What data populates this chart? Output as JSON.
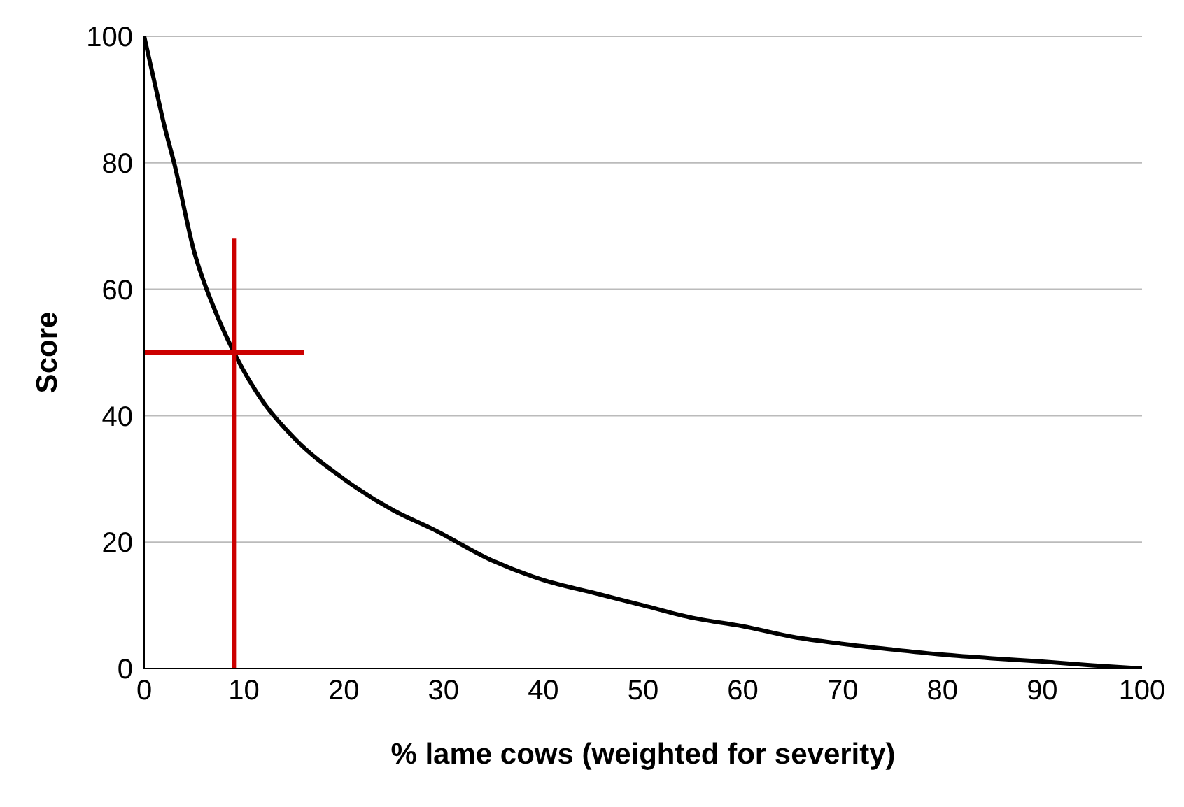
{
  "chart_data": {
    "type": "line",
    "xlabel": "% lame cows (weighted for severity)",
    "ylabel": "Score",
    "xlim": [
      0,
      100
    ],
    "ylim": [
      0,
      100
    ],
    "xticks": [
      0,
      10,
      20,
      30,
      40,
      50,
      60,
      70,
      80,
      90,
      100
    ],
    "yticks": [
      0,
      20,
      40,
      60,
      80,
      100
    ],
    "grid": "y",
    "marker": "none",
    "line_style": "solid",
    "series": [
      {
        "color": "#000000",
        "x": [
          0,
          1,
          2,
          3,
          5,
          7,
          9,
          12,
          15,
          20,
          25,
          29,
          35,
          40,
          45,
          50,
          55,
          60,
          65,
          70,
          75,
          80,
          85,
          90,
          95,
          100
        ],
        "values": [
          100,
          93,
          86,
          80,
          66,
          57,
          50,
          42,
          36.5,
          30,
          25,
          22,
          17,
          14,
          12,
          10,
          8,
          6.7,
          5,
          3.9,
          3,
          2.2,
          1.6,
          1.1,
          0.5,
          0
        ]
      },
      {
        "color": "#cc0000",
        "x": [
          9,
          9
        ],
        "values": [
          0,
          68
        ]
      },
      {
        "color": "#cc0000",
        "x": [
          0,
          16
        ],
        "values": [
          50,
          50
        ]
      }
    ]
  }
}
